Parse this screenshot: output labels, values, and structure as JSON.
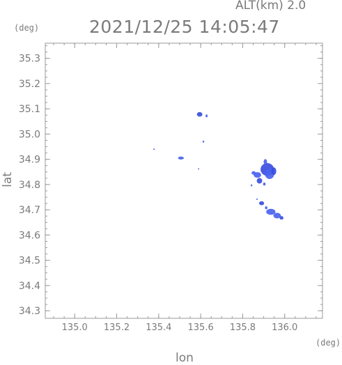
{
  "header": {
    "altitude_label": "ALT(km)  2.0",
    "timestamp": "2021/12/25 14:05:47",
    "y_unit": "(deg)",
    "x_unit": "(deg)"
  },
  "chart_data": {
    "type": "heatmap",
    "title": "2021/12/25 14:05:47",
    "xlabel": "lon",
    "ylabel": "lat",
    "xlim": [
      134.86,
      136.18
    ],
    "ylim": [
      34.27,
      35.36
    ],
    "xticks": [
      "135.0",
      "135.2",
      "135.4",
      "135.6",
      "135.8",
      "136.0"
    ],
    "yticks": [
      "34.3",
      "34.4",
      "34.5",
      "34.6",
      "34.7",
      "34.8",
      "34.9",
      "35.0",
      "35.1",
      "35.2",
      "35.3"
    ],
    "grid": false,
    "colors": {
      "echo": "#4a64ee",
      "echo_strong": "#3a4ee0",
      "axis": "#999999",
      "text": "#7a7a7a"
    },
    "echo_cells": [
      {
        "lon": 135.595,
        "lat": 35.078,
        "rlon": 0.013,
        "rlat": 0.009
      },
      {
        "lon": 135.628,
        "lat": 35.072,
        "rlon": 0.005,
        "rlat": 0.006
      },
      {
        "lon": 135.613,
        "lat": 34.97,
        "rlon": 0.004,
        "rlat": 0.004
      },
      {
        "lon": 135.378,
        "lat": 34.94,
        "rlon": 0.002,
        "rlat": 0.002
      },
      {
        "lon": 135.506,
        "lat": 34.905,
        "rlon": 0.014,
        "rlat": 0.006
      },
      {
        "lon": 135.59,
        "lat": 34.862,
        "rlon": 0.002,
        "rlat": 0.002
      },
      {
        "lon": 135.917,
        "lat": 34.86,
        "rlon": 0.032,
        "rlat": 0.025
      },
      {
        "lon": 135.928,
        "lat": 34.842,
        "rlon": 0.022,
        "rlat": 0.02
      },
      {
        "lon": 135.908,
        "lat": 34.89,
        "rlon": 0.008,
        "rlat": 0.011
      },
      {
        "lon": 135.948,
        "lat": 34.853,
        "rlon": 0.012,
        "rlat": 0.015
      },
      {
        "lon": 135.87,
        "lat": 34.838,
        "rlon": 0.018,
        "rlat": 0.011
      },
      {
        "lon": 135.852,
        "lat": 34.846,
        "rlon": 0.01,
        "rlat": 0.007
      },
      {
        "lon": 135.88,
        "lat": 34.815,
        "rlon": 0.013,
        "rlat": 0.011
      },
      {
        "lon": 135.842,
        "lat": 34.797,
        "rlon": 0.004,
        "rlat": 0.004
      },
      {
        "lon": 135.903,
        "lat": 34.802,
        "rlon": 0.006,
        "rlat": 0.006
      },
      {
        "lon": 135.89,
        "lat": 34.726,
        "rlon": 0.012,
        "rlat": 0.008
      },
      {
        "lon": 135.934,
        "lat": 34.692,
        "rlon": 0.022,
        "rlat": 0.012
      },
      {
        "lon": 135.964,
        "lat": 34.677,
        "rlon": 0.018,
        "rlat": 0.011
      },
      {
        "lon": 135.985,
        "lat": 34.668,
        "rlon": 0.009,
        "rlat": 0.007
      },
      {
        "lon": 135.912,
        "lat": 34.708,
        "rlon": 0.006,
        "rlat": 0.006
      },
      {
        "lon": 135.868,
        "lat": 34.742,
        "rlon": 0.003,
        "rlat": 0.003
      }
    ]
  }
}
